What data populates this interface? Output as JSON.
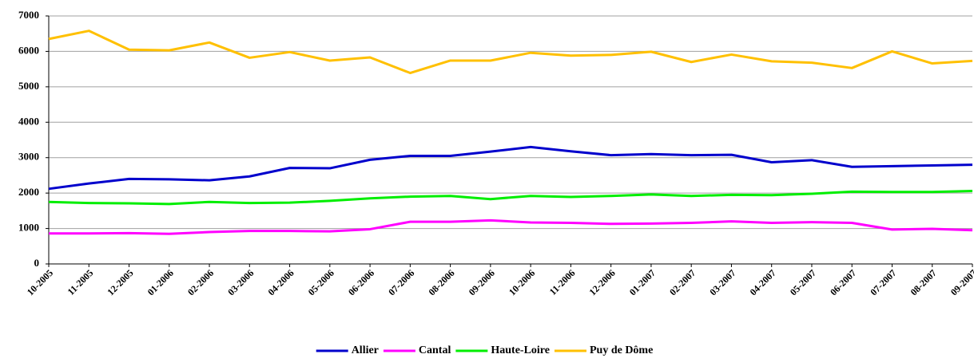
{
  "chart_data": {
    "type": "line",
    "categories": [
      "10-2005",
      "11-2005",
      "12-2005",
      "01-2006",
      "02-2006",
      "03-2006",
      "04-2006",
      "05-2006",
      "06-2006",
      "07-2006",
      "08-2006",
      "09-2006",
      "10-2006",
      "11-2006",
      "12-2006",
      "01-2007",
      "02-2007",
      "03-2007",
      "04-2007",
      "05-2007",
      "06-2007",
      "07-2007",
      "08-2007",
      "09-2007"
    ],
    "series": [
      {
        "name": "Allier",
        "color": "#0000cc",
        "values": [
          2120,
          2270,
          2400,
          2390,
          2360,
          2470,
          2710,
          2700,
          2940,
          3050,
          3050,
          3170,
          3300,
          3180,
          3070,
          3100,
          3070,
          3080,
          2870,
          2930,
          2740,
          2760,
          2780,
          2800
        ]
      },
      {
        "name": "Cantal",
        "color": "#ff00ff",
        "values": [
          860,
          860,
          870,
          850,
          900,
          930,
          930,
          920,
          980,
          1190,
          1190,
          1230,
          1170,
          1160,
          1130,
          1140,
          1160,
          1200,
          1160,
          1180,
          1160,
          970,
          990,
          950
        ]
      },
      {
        "name": "Haute-Loire",
        "color": "#00ee00",
        "values": [
          1750,
          1720,
          1710,
          1690,
          1750,
          1720,
          1730,
          1780,
          1850,
          1900,
          1920,
          1830,
          1920,
          1890,
          1920,
          1960,
          1920,
          1950,
          1940,
          1980,
          2040,
          2030,
          2030,
          2060
        ]
      },
      {
        "name": "Puy de Dôme",
        "color": "#ffc000",
        "values": [
          6350,
          6580,
          6050,
          6030,
          6250,
          5820,
          5980,
          5740,
          5830,
          5390,
          5740,
          5740,
          5960,
          5880,
          5900,
          5990,
          5700,
          5910,
          5720,
          5680,
          5530,
          6000,
          5660,
          5730
        ]
      }
    ],
    "ylim": [
      0,
      7000
    ],
    "yticks": [
      0,
      1000,
      2000,
      3000,
      4000,
      5000,
      6000,
      7000
    ],
    "grid": true,
    "legend": "bottom"
  }
}
